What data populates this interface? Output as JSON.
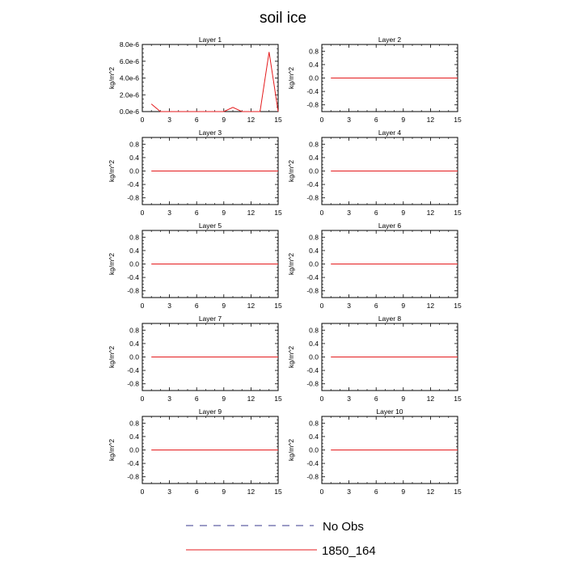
{
  "figure": {
    "title": "soil ice"
  },
  "chart_data": {
    "type": "line",
    "title": "soil ice",
    "legend": {
      "placement": "bottom",
      "entries": [
        {
          "name": "No Obs",
          "color": "#3a3a8c",
          "style": "dashed"
        },
        {
          "name": "1850_164",
          "color": "#e41a1c",
          "style": "solid"
        }
      ]
    },
    "panels": [
      {
        "title": "Layer 1",
        "xlabel": "",
        "ylabel": "kg/m^2",
        "xlim": [
          0,
          15
        ],
        "ylim": [
          0,
          8e-06
        ],
        "xticks": [
          "0",
          "3",
          "6",
          "9",
          "12",
          "15"
        ],
        "yticks": [
          "0.0e-6",
          "2.0e-6",
          "4.0e-6",
          "6.0e-6",
          "8.0e-6"
        ],
        "ytick_values": [
          0,
          2e-06,
          4e-06,
          6e-06,
          8e-06
        ],
        "series": [
          {
            "name": "1850_164",
            "x": [
              1,
              2,
              3,
              4,
              5,
              6,
              7,
              8,
              9,
              10,
              11,
              12,
              13,
              14,
              15
            ],
            "y": [
              9e-07,
              0,
              0,
              0,
              0,
              0,
              0,
              0,
              0,
              5e-07,
              0,
              0,
              0,
              7.1e-06,
              0
            ]
          }
        ]
      },
      {
        "title": "Layer 2",
        "xlabel": "",
        "ylabel": "kg/m^2",
        "xlim": [
          0,
          15
        ],
        "ylim": [
          -1,
          1
        ],
        "xticks": [
          "0",
          "3",
          "6",
          "9",
          "12",
          "15"
        ],
        "yticks": [
          "-0.8",
          "-0.4",
          "0.0",
          "0.4",
          "0.8"
        ],
        "ytick_values": [
          -0.8,
          -0.4,
          0.0,
          0.4,
          0.8
        ],
        "series": [
          {
            "name": "1850_164",
            "x": [
              1,
              15
            ],
            "y": [
              0,
              0
            ]
          }
        ]
      },
      {
        "title": "Layer 3",
        "xlabel": "",
        "ylabel": "kg/m^2",
        "xlim": [
          0,
          15
        ],
        "ylim": [
          -1,
          1
        ],
        "xticks": [
          "0",
          "3",
          "6",
          "9",
          "12",
          "15"
        ],
        "yticks": [
          "-0.8",
          "-0.4",
          "0.0",
          "0.4",
          "0.8"
        ],
        "ytick_values": [
          -0.8,
          -0.4,
          0.0,
          0.4,
          0.8
        ],
        "series": [
          {
            "name": "1850_164",
            "x": [
              1,
              15
            ],
            "y": [
              0,
              0
            ]
          }
        ]
      },
      {
        "title": "Layer 4",
        "xlabel": "",
        "ylabel": "kg/m^2",
        "xlim": [
          0,
          15
        ],
        "ylim": [
          -1,
          1
        ],
        "xticks": [
          "0",
          "3",
          "6",
          "9",
          "12",
          "15"
        ],
        "yticks": [
          "-0.8",
          "-0.4",
          "0.0",
          "0.4",
          "0.8"
        ],
        "ytick_values": [
          -0.8,
          -0.4,
          0.0,
          0.4,
          0.8
        ],
        "series": [
          {
            "name": "1850_164",
            "x": [
              1,
              15
            ],
            "y": [
              0,
              0
            ]
          }
        ]
      },
      {
        "title": "Layer 5",
        "xlabel": "",
        "ylabel": "kg/m^2",
        "xlim": [
          0,
          15
        ],
        "ylim": [
          -1,
          1
        ],
        "xticks": [
          "0",
          "3",
          "6",
          "9",
          "12",
          "15"
        ],
        "yticks": [
          "-0.8",
          "-0.4",
          "0.0",
          "0.4",
          "0.8"
        ],
        "ytick_values": [
          -0.8,
          -0.4,
          0.0,
          0.4,
          0.8
        ],
        "series": [
          {
            "name": "1850_164",
            "x": [
              1,
              15
            ],
            "y": [
              0,
              0
            ]
          }
        ]
      },
      {
        "title": "Layer 6",
        "xlabel": "",
        "ylabel": "kg/m^2",
        "xlim": [
          0,
          15
        ],
        "ylim": [
          -1,
          1
        ],
        "xticks": [
          "0",
          "3",
          "6",
          "9",
          "12",
          "15"
        ],
        "yticks": [
          "-0.8",
          "-0.4",
          "0.0",
          "0.4",
          "0.8"
        ],
        "ytick_values": [
          -0.8,
          -0.4,
          0.0,
          0.4,
          0.8
        ],
        "series": [
          {
            "name": "1850_164",
            "x": [
              1,
              15
            ],
            "y": [
              0,
              0
            ]
          }
        ]
      },
      {
        "title": "Layer 7",
        "xlabel": "",
        "ylabel": "kg/m^2",
        "xlim": [
          0,
          15
        ],
        "ylim": [
          -1,
          1
        ],
        "xticks": [
          "0",
          "3",
          "6",
          "9",
          "12",
          "15"
        ],
        "yticks": [
          "-0.8",
          "-0.4",
          "0.0",
          "0.4",
          "0.8"
        ],
        "ytick_values": [
          -0.8,
          -0.4,
          0.0,
          0.4,
          0.8
        ],
        "series": [
          {
            "name": "1850_164",
            "x": [
              1,
              15
            ],
            "y": [
              0,
              0
            ]
          }
        ]
      },
      {
        "title": "Layer 8",
        "xlabel": "",
        "ylabel": "kg/m^2",
        "xlim": [
          0,
          15
        ],
        "ylim": [
          -1,
          1
        ],
        "xticks": [
          "0",
          "3",
          "6",
          "9",
          "12",
          "15"
        ],
        "yticks": [
          "-0.8",
          "-0.4",
          "0.0",
          "0.4",
          "0.8"
        ],
        "ytick_values": [
          -0.8,
          -0.4,
          0.0,
          0.4,
          0.8
        ],
        "series": [
          {
            "name": "1850_164",
            "x": [
              1,
              15
            ],
            "y": [
              0,
              0
            ]
          }
        ]
      },
      {
        "title": "Layer 9",
        "xlabel": "",
        "ylabel": "kg/m^2",
        "xlim": [
          0,
          15
        ],
        "ylim": [
          -1,
          1
        ],
        "xticks": [
          "0",
          "3",
          "6",
          "9",
          "12",
          "15"
        ],
        "yticks": [
          "-0.8",
          "-0.4",
          "0.0",
          "0.4",
          "0.8"
        ],
        "ytick_values": [
          -0.8,
          -0.4,
          0.0,
          0.4,
          0.8
        ],
        "series": [
          {
            "name": "1850_164",
            "x": [
              1,
              15
            ],
            "y": [
              0,
              0
            ]
          }
        ]
      },
      {
        "title": "Layer 10",
        "xlabel": "",
        "ylabel": "kg/m^2",
        "xlim": [
          0,
          15
        ],
        "ylim": [
          -1,
          1
        ],
        "xticks": [
          "0",
          "3",
          "6",
          "9",
          "12",
          "15"
        ],
        "yticks": [
          "-0.8",
          "-0.4",
          "0.0",
          "0.4",
          "0.8"
        ],
        "ytick_values": [
          -0.8,
          -0.4,
          0.0,
          0.4,
          0.8
        ],
        "series": [
          {
            "name": "1850_164",
            "x": [
              1,
              15
            ],
            "y": [
              0,
              0
            ]
          }
        ]
      }
    ]
  }
}
